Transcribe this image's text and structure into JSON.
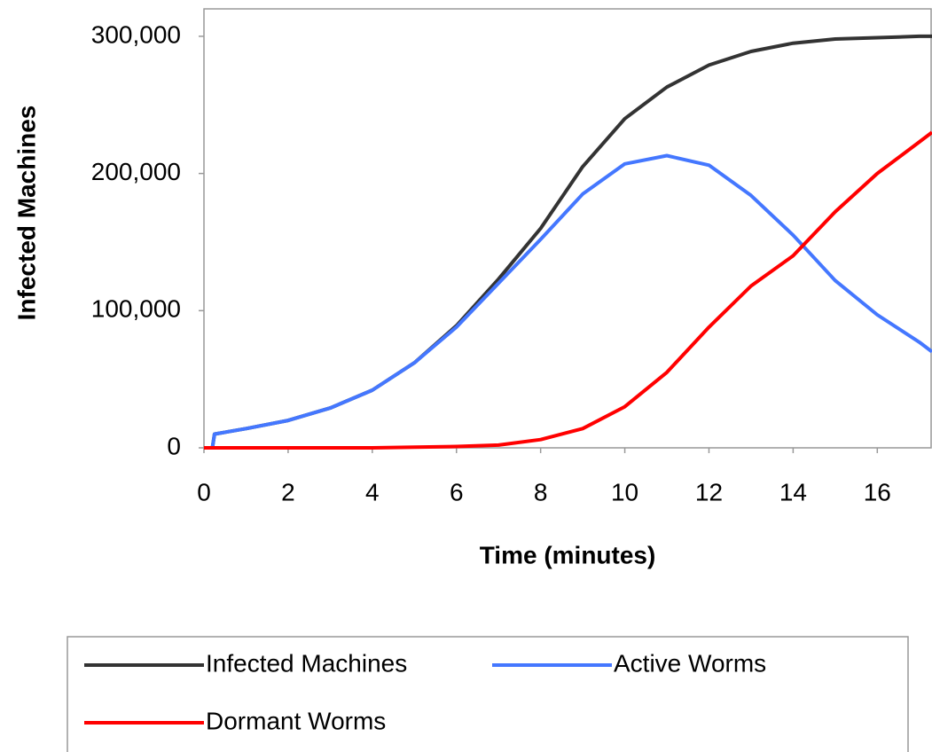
{
  "chart_data": {
    "type": "line",
    "x_label": "Time (minutes)",
    "y_label": "Infected Machines",
    "x": [
      0,
      0.2,
      0.25,
      1,
      2,
      3,
      4,
      5,
      6,
      7,
      8,
      9,
      10,
      11,
      12,
      13,
      14,
      15,
      16,
      17,
      17.3
    ],
    "series": [
      {
        "name": "Infected Machines",
        "color": "#333333",
        "values": [
          0,
          0,
          10000,
          14000,
          20000,
          29000,
          42000,
          62000,
          89000,
          123000,
          160000,
          205000,
          240000,
          263000,
          279000,
          289000,
          295000,
          298000,
          299000,
          300000,
          300000
        ]
      },
      {
        "name": "Active Worms",
        "color": "#4477ff",
        "values": [
          0,
          0,
          10000,
          14000,
          20000,
          29000,
          42000,
          62000,
          88000,
          120000,
          152000,
          185000,
          207000,
          213000,
          206000,
          184000,
          155000,
          122000,
          97000,
          77000,
          70000
        ]
      },
      {
        "name": "Dormant Worms",
        "color": "#ff0000",
        "values": [
          0,
          0,
          0,
          0,
          0,
          0,
          0,
          500,
          1000,
          2000,
          6000,
          14000,
          30000,
          55000,
          88000,
          118000,
          140000,
          172000,
          200000,
          223000,
          230000
        ]
      }
    ],
    "xlim": [
      0,
      17.3
    ],
    "xticks": [
      0,
      2,
      4,
      6,
      8,
      10,
      12,
      14,
      16
    ],
    "ylim": [
      0,
      320000
    ],
    "yticks": [
      0,
      {
        "value": 100000,
        "label": "100,000"
      },
      {
        "value": 200000,
        "label": "200,000"
      },
      {
        "value": 300000,
        "label": "300,000"
      }
    ],
    "legend": "bottom"
  }
}
